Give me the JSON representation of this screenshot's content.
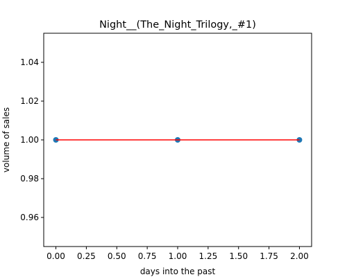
{
  "chart_data": {
    "type": "line",
    "title": "Night__(The_Night_Trilogy,_#1)",
    "xlabel": "days into the past",
    "ylabel": "volume of sales",
    "x": [
      0,
      1,
      2
    ],
    "series": [
      {
        "values": [
          1.0,
          1.0,
          1.0
        ],
        "marker_color": "#1f77b4",
        "line_color": "#ff0000"
      }
    ],
    "xlim": [
      -0.1,
      2.1
    ],
    "ylim": [
      0.945,
      1.055
    ],
    "xticks": [
      0.0,
      0.25,
      0.5,
      0.75,
      1.0,
      1.25,
      1.5,
      1.75,
      2.0
    ],
    "xtick_labels": [
      "0.00",
      "0.25",
      "0.50",
      "0.75",
      "1.00",
      "1.25",
      "1.50",
      "1.75",
      "2.00"
    ],
    "yticks": [
      0.96,
      0.98,
      1.0,
      1.02,
      1.04
    ],
    "ytick_labels": [
      "0.96",
      "0.98",
      "1.00",
      "1.02",
      "1.04"
    ],
    "grid": false,
    "legend": "none"
  }
}
